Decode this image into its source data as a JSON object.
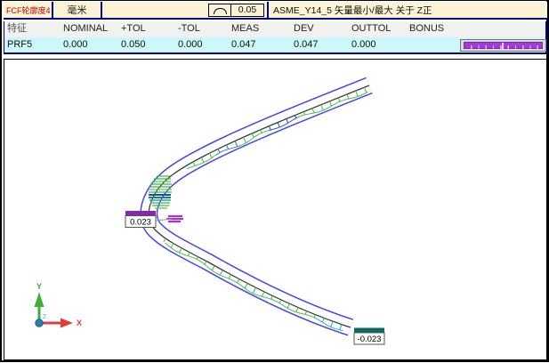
{
  "header": {
    "title": "FCF轮廓度4",
    "units": "毫米",
    "tolerance_value": "0.05",
    "standard_note": "ASME_Y14_5 矢量最小/最大 关于 Z正"
  },
  "table": {
    "columns": [
      "特征",
      "NOMINAL",
      "+TOL",
      "-TOL",
      "MEAS",
      "DEV",
      "OUTTOL",
      "BONUS"
    ],
    "row": {
      "feature": "PRF5",
      "nominal": "0.000",
      "plus_tol": "0.050",
      "minus_tol": "0.000",
      "meas": "0.047",
      "dev": "0.047",
      "outtol": "0.000",
      "bonus": ""
    }
  },
  "graphics": {
    "max_dev_label": "0.023",
    "min_dev_label": "-0.023",
    "axis": {
      "x": "X",
      "y": "Y",
      "z": "Z"
    }
  },
  "icons": {
    "profile_symbol": "profile-of-line-arc"
  },
  "colors": {
    "header_bg": "#FBF3D5",
    "table_border": "#000090",
    "header_row_bg": "#F1F1EF",
    "value_row_bg": "#CDF7F8",
    "title_text": "#C00000",
    "dev_bar": "#A23BD3",
    "tolerance_band": "#4646F2",
    "nominal_curve": "#3C3C3C",
    "measured_green": "#4BBF4B",
    "measured_teal": "#2C8C8C",
    "max_dev_marker": "#A238C8",
    "min_dev_tag": "#0A6A5E",
    "axis_x": "#E23C3C",
    "axis_y": "#3FAE3F",
    "axis_z": "#35C8DC"
  }
}
